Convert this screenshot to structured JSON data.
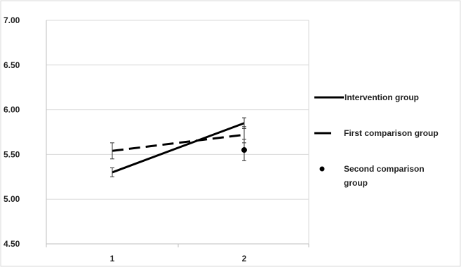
{
  "chart_data": {
    "type": "line",
    "title": "",
    "xlabel": "",
    "ylabel": "",
    "x": [
      1,
      2
    ],
    "x_tick_labels": [
      "1",
      "2"
    ],
    "ylim": [
      4.5,
      7.0
    ],
    "y_ticks": [
      4.5,
      5.0,
      5.5,
      6.0,
      6.5,
      7.0
    ],
    "y_tick_labels": [
      "4.50",
      "5.00",
      "5.50",
      "6.00",
      "6.50",
      "7.00"
    ],
    "grid": "horizontal",
    "legend_position": "right",
    "series": [
      {
        "name": "Intervention group",
        "style": "solid",
        "color": "#000000",
        "values": [
          5.3,
          5.85
        ],
        "error": [
          0.05,
          0.06
        ]
      },
      {
        "name": "First comparison group",
        "style": "dashed",
        "color": "#000000",
        "values": [
          5.54,
          5.72
        ],
        "error": [
          0.09,
          0.09
        ]
      },
      {
        "name": "Second comparison group",
        "style": "marker",
        "color": "#000000",
        "x": [
          2
        ],
        "values": [
          5.55
        ],
        "error": [
          0.12
        ]
      }
    ]
  }
}
